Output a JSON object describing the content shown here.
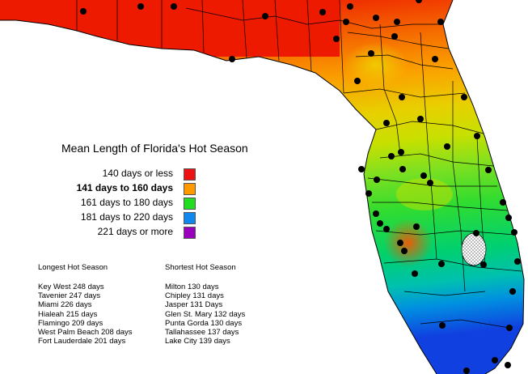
{
  "map": {
    "title": "Mean Length of Florida's Hot Season",
    "legend": [
      {
        "label": "140 days or less",
        "color": "#ee1111",
        "bold": false
      },
      {
        "label": "141 days to 160 days",
        "color": "#ff9900",
        "bold": true
      },
      {
        "label": "161 days to 180 days",
        "color": "#22dd22",
        "bold": false
      },
      {
        "label": "181 days to 220 days",
        "color": "#1188ee",
        "bold": false
      },
      {
        "label": "221 days or more",
        "color": "#9900bb",
        "bold": false
      }
    ],
    "longest": {
      "heading": "Longest Hot Season",
      "items": [
        "Key West 248 days",
        "Tavenier 247 days",
        "Miami 226 days",
        "Hialeah 215 days",
        "Flamingo 209 days",
        "West Palm Beach 208 days",
        "Fort Lauderdale 201 days"
      ]
    },
    "shortest": {
      "heading": "Shortest Hot Season",
      "items": [
        "Milton 130 days",
        "Chipley 131 days",
        "Jasper 131 Days",
        "Glen St. Mary 132 days",
        "Punta Gorda 130 days",
        "Tallahassee 137 days",
        "Lake City 139 days"
      ]
    }
  }
}
